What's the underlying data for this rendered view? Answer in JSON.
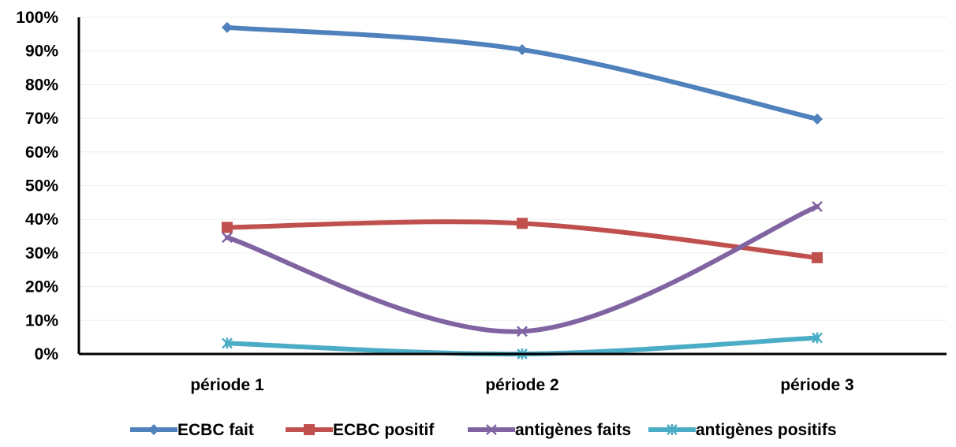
{
  "chart_data": {
    "type": "line",
    "categories": [
      "période 1",
      "période 2",
      "période 3"
    ],
    "y_ticks": [
      "0%",
      "10%",
      "20%",
      "30%",
      "40%",
      "50%",
      "60%",
      "70%",
      "80%",
      "90%",
      "100%"
    ],
    "ylim": [
      0,
      100
    ],
    "grid": true,
    "legend_position": "bottom",
    "series": [
      {
        "name": "ECBC fait",
        "values": [
          97,
          90.4,
          69.8
        ],
        "color": "#4F81BD",
        "marker": "diamond"
      },
      {
        "name": "ECBC positif",
        "values": [
          37.6,
          38.8,
          28.6
        ],
        "color": "#C0504D",
        "marker": "square"
      },
      {
        "name": "antigènes faits",
        "values": [
          34.6,
          6.7,
          43.8
        ],
        "color": "#8064A2",
        "marker": "x"
      },
      {
        "name": "antigènes positifs",
        "values": [
          3.2,
          0,
          4.8
        ],
        "color": "#4BACC6",
        "marker": "asterisk"
      }
    ]
  }
}
